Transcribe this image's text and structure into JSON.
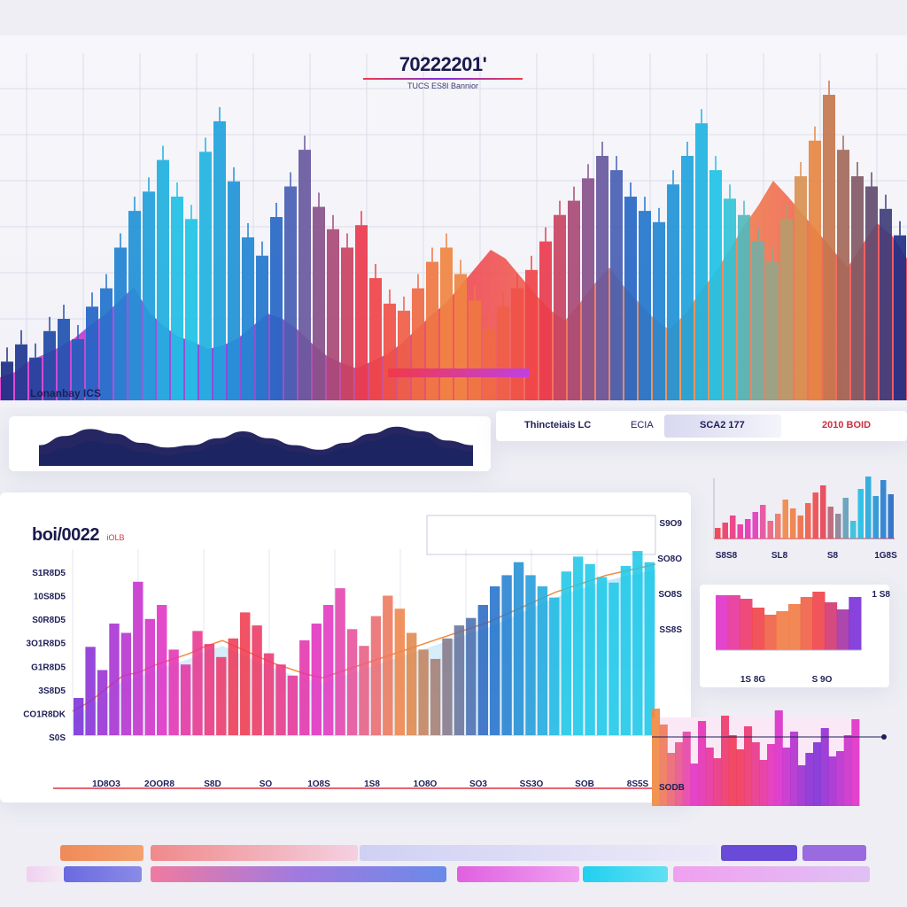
{
  "colors": {
    "blue_dark": "#1e2f86",
    "blue": "#2468c8",
    "cyan": "#1ec8e8",
    "magenta": "#e030c8",
    "purple": "#7a2fd8",
    "orange": "#f08a40",
    "red": "#f03a4a",
    "navy": "#1a1a5a"
  },
  "hero": {
    "title": "70222201'",
    "subtitle": "TUCS ES8I Bannior"
  },
  "section_label": "Lonanbay ICS",
  "stats_strip": {
    "items": [
      {
        "label": "Thincteiais LC"
      },
      {
        "label": "ECIA"
      },
      {
        "label": "SCA2 177"
      },
      {
        "label": "2010 BOID"
      }
    ]
  },
  "main_panel": {
    "title": "boi/0022",
    "title_note": "iOLB"
  },
  "chart_data": [
    {
      "type": "bar",
      "title": "70222201'",
      "subtitle": "TUCS ES8I Bannior",
      "series": [
        {
          "name": "",
          "values": [
            38,
            55,
            42,
            68,
            80,
            60,
            92,
            110,
            150,
            186,
            205,
            236,
            200,
            178,
            244,
            274,
            215,
            160,
            142,
            180,
            210,
            246,
            190,
            168,
            150,
            172,
            120,
            95,
            88,
            110,
            136,
            150,
            124,
            98,
            70,
            92,
            110,
            128,
            156,
            182,
            196,
            218,
            240,
            226,
            200,
            186,
            175,
            212,
            240,
            272,
            226,
            198,
            182,
            156,
            136,
            178,
            220,
            255,
            300,
            246,
            220,
            210,
            188,
            162
          ]
        },
        {
          "name": "",
          "values": [
            26,
            32,
            45,
            52,
            60,
            70,
            84,
            96,
            112,
            128,
            100,
            84,
            72,
            66,
            58,
            62,
            70,
            84,
            98,
            92,
            80,
            64,
            50,
            42,
            36,
            44,
            52,
            64,
            80,
            96,
            110,
            130,
            150,
            170,
            160,
            140,
            120,
            102,
            90,
            110,
            132,
            150,
            128,
            110,
            92,
            80,
            96,
            120,
            142,
            168,
            196,
            220,
            248,
            230,
            210,
            190,
            170,
            150,
            176,
            200,
            186,
            160
          ]
        }
      ]
    },
    {
      "type": "area",
      "title": "",
      "xlabel": "",
      "ylabel": "",
      "series": [
        {
          "name": "",
          "values": [
            18,
            26,
            32,
            28,
            20,
            16,
            18,
            24,
            30,
            24,
            18,
            14,
            20,
            28,
            34,
            30,
            22,
            18
          ]
        },
        {
          "name": "",
          "values": [
            6,
            10,
            14,
            12,
            8,
            6,
            8,
            12,
            16,
            12,
            8,
            6,
            10,
            14,
            18,
            16,
            10,
            8
          ]
        }
      ]
    },
    {
      "type": "bar",
      "title": "boi/0022",
      "y_tick_labels": [
        "S1R8D5",
        "10S8D5",
        "S0R8D5",
        "3O1R8D5",
        "G1R8D5",
        "3S8D5",
        "CO1R8DK",
        "S0S"
      ],
      "x_tick_labels": [
        "1D8O3",
        "2OOR8",
        "S8D",
        "SO",
        "1O8S",
        "1S8",
        "1O8O",
        "SO3",
        "SS3O",
        "SOB",
        "8S5S"
      ],
      "right_tick_labels": [
        "S9O9",
        "SO8O",
        "SO8S",
        "SS8S"
      ],
      "ylim": [
        0,
        200
      ],
      "series": [
        {
          "name": "",
          "values": [
            40,
            95,
            70,
            120,
            110,
            165,
            125,
            140,
            92,
            76,
            112,
            98,
            84,
            104,
            132,
            118,
            88,
            76,
            64,
            102,
            120,
            140,
            158,
            114,
            96,
            128,
            150,
            136,
            110,
            92,
            82,
            104,
            118,
            126,
            140,
            160,
            172,
            186,
            172,
            160,
            148,
            176,
            192,
            184,
            170,
            164,
            182,
            198,
            186
          ]
        },
        {
          "name": "",
          "values": [
            20,
            30,
            44,
            58,
            62,
            70,
            76,
            82,
            90,
            96,
            88,
            80,
            72,
            66,
            60,
            56,
            62,
            68,
            74,
            80,
            86,
            92,
            98,
            104,
            110,
            116,
            124,
            132,
            140,
            148,
            154,
            160,
            166,
            170,
            174,
            178
          ]
        }
      ]
    },
    {
      "type": "bar",
      "title": "",
      "x_tick_labels": [
        "S8S8",
        "SL8",
        "S8",
        "1G8S"
      ],
      "series": [
        {
          "name": "",
          "values": [
            12,
            18,
            26,
            16,
            22,
            30,
            38,
            20,
            28,
            44,
            34,
            26,
            40,
            52,
            60,
            36,
            28,
            46,
            20,
            56,
            70,
            48,
            66,
            50
          ]
        }
      ]
    },
    {
      "type": "bar",
      "title": "",
      "x_tick_labels": [
        "1S 8G",
        "S 9O"
      ],
      "corner_label": "1 S8",
      "series": [
        {
          "name": "",
          "values": [
            62,
            62,
            58,
            48,
            40,
            44,
            52,
            60,
            66,
            54,
            46,
            60
          ]
        }
      ]
    },
    {
      "type": "bar",
      "title": "",
      "corner_label": "SODB",
      "series": [
        {
          "name": "",
          "values": [
            110,
            92,
            60,
            72,
            84,
            48,
            96,
            66,
            54,
            102,
            80,
            64,
            90,
            72,
            52,
            70,
            108,
            66,
            84,
            46,
            60,
            72,
            88,
            56,
            62,
            80,
            98
          ]
        }
      ]
    }
  ]
}
